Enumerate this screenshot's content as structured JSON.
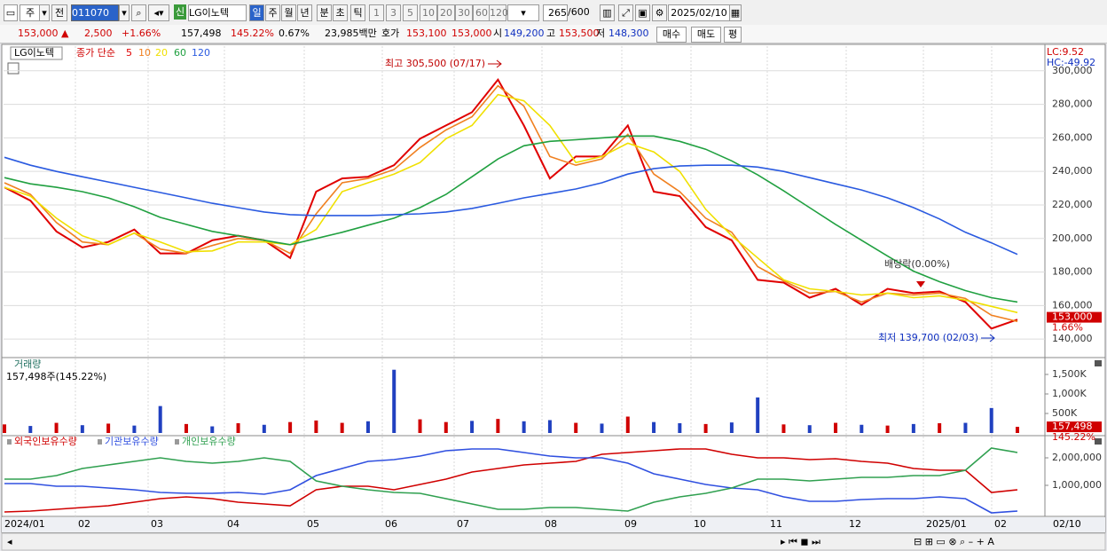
{
  "toolbar": {
    "period": "주",
    "prev": "전",
    "code": "011070",
    "badge": "신",
    "name": "LG이노텍",
    "intervals": [
      "일",
      "주",
      "월",
      "년",
      "분",
      "초",
      "틱"
    ],
    "minutes": [
      "1",
      "3",
      "5",
      "10",
      "20",
      "30",
      "60",
      "120"
    ],
    "count": "265",
    "max": "/600",
    "date": "2025/02/10"
  },
  "quote": {
    "price": "153,000 ▲",
    "change": "2,500",
    "change_pct": "+1.66%",
    "volume": "157,498",
    "volume_ratio": "145.22%",
    "turnover": "0.67%",
    "amount": "23,985백만",
    "ask_label": "호가",
    "ask": "153,100",
    "bid": "153,000",
    "open_label": "시",
    "open": "149,200",
    "high_label": "고",
    "high": "153,500",
    "low_label": "저",
    "low": "148,300",
    "buy": "매수",
    "sell": "매도",
    "avg": "평"
  },
  "x_axis": {
    "labels": [
      "2024/01",
      "02",
      "03",
      "04",
      "05",
      "06",
      "07",
      "08",
      "09",
      "10",
      "11",
      "12",
      "2025/01",
      "02"
    ],
    "last": "02/10"
  },
  "chart_data": [
    {
      "type": "line",
      "title": "LG이노텍",
      "legend_label": "종가 단순",
      "lc": "LC:9.52",
      "hc": "HC:-49.92",
      "series": [
        {
          "name": "5",
          "color": "#e00000",
          "values": [
            230500,
            222600,
            204200,
            194700,
            197900,
            205300,
            191100,
            191100,
            198900,
            201600,
            198900,
            188400,
            227900,
            235800,
            236800,
            243700,
            259500,
            267400,
            275300,
            294700,
            267400,
            235800,
            248900,
            248900,
            267400,
            227900,
            225300,
            206800,
            198900,
            175300,
            173700,
            164700,
            170000,
            160500,
            170000,
            167400,
            168400,
            162100,
            146300,
            151600
          ]
        },
        {
          "name": "10",
          "color": "#f08020",
          "values": [
            233200,
            226300,
            209500,
            197900,
            196300,
            203200,
            193700,
            191100,
            195800,
            200000,
            198900,
            191100,
            214700,
            233200,
            235800,
            241100,
            254200,
            264700,
            272600,
            291100,
            279000,
            248900,
            243700,
            247400,
            262100,
            238400,
            227900,
            212100,
            203700,
            183200,
            174700,
            167400,
            168400,
            162100,
            167400,
            166300,
            167400,
            164200,
            154200,
            150500
          ]
        },
        {
          "name": "20",
          "color": "#f0e000",
          "values": [
            230500,
            225300,
            212100,
            201600,
            196300,
            203200,
            197900,
            192100,
            192600,
            197900,
            197900,
            196300,
            205300,
            227900,
            233200,
            238400,
            245300,
            259500,
            267400,
            285800,
            282100,
            267400,
            245300,
            248900,
            256800,
            251600,
            240000,
            217400,
            201600,
            188400,
            175300,
            170000,
            168400,
            166300,
            167400,
            164700,
            165800,
            163200,
            159500,
            155800
          ]
        },
        {
          "name": "60",
          "color": "#20a040",
          "values": [
            236300,
            232600,
            230500,
            227900,
            224200,
            218900,
            212600,
            208400,
            204200,
            201600,
            198900,
            196300,
            200000,
            203700,
            207900,
            212100,
            218400,
            226300,
            236800,
            247400,
            255300,
            257900,
            258900,
            260000,
            261100,
            261100,
            257900,
            253200,
            246300,
            237900,
            228400,
            218400,
            208400,
            198900,
            189500,
            180500,
            174200,
            168900,
            164700,
            162100
          ]
        },
        {
          "name": "120",
          "color": "#2a5ae0",
          "values": [
            248400,
            243700,
            240000,
            236800,
            233700,
            230500,
            227400,
            224200,
            221000,
            218400,
            215800,
            214200,
            213700,
            213700,
            213700,
            214200,
            214700,
            215800,
            217900,
            221000,
            224200,
            226800,
            229500,
            233200,
            238400,
            241600,
            243200,
            243700,
            243700,
            242600,
            240000,
            236300,
            232600,
            228900,
            224200,
            218400,
            211600,
            203700,
            197400,
            190500
          ]
        }
      ],
      "ylim": [
        129500,
        314700
      ],
      "yticks": [
        {
          "value": 140000,
          "label": "140,000"
        },
        {
          "value": 160000,
          "label": "160,000"
        },
        {
          "value": 180000,
          "label": "180,000"
        },
        {
          "value": 200000,
          "label": "200,000"
        },
        {
          "value": 220000,
          "label": "220,000"
        },
        {
          "value": 240000,
          "label": "240,000"
        },
        {
          "value": 260000,
          "label": "260,000"
        },
        {
          "value": 280000,
          "label": "280,000"
        },
        {
          "value": 300000,
          "label": "300,000"
        }
      ],
      "grid": true,
      "annotations": [
        "최고 305,500 (07/17)",
        "최저 139,700 (02/03)",
        "배당락(0.00%)"
      ],
      "last_value": {
        "value": 153000,
        "label": "153,000"
      },
      "last_change": "1.66%"
    },
    {
      "type": "bar",
      "title": "거래량",
      "subtitle": "157,498주(145.22%)",
      "values": [
        220000,
        180000,
        260000,
        200000,
        240000,
        190000,
        690000,
        230000,
        170000,
        250000,
        210000,
        280000,
        320000,
        260000,
        300000,
        1620000,
        350000,
        280000,
        310000,
        360000,
        300000,
        330000,
        260000,
        240000,
        420000,
        280000,
        250000,
        230000,
        270000,
        910000,
        220000,
        200000,
        260000,
        210000,
        190000,
        230000,
        250000,
        260000,
        640000,
        157498
      ],
      "colors": [
        "#d00000",
        "#2040c0",
        "#d00000",
        "#2040c0",
        "#d00000",
        "#2040c0",
        "#2040c0",
        "#d00000",
        "#2040c0",
        "#d00000",
        "#2040c0",
        "#d00000",
        "#d00000",
        "#d00000",
        "#2040c0",
        "#2040c0",
        "#d00000",
        "#d00000",
        "#2040c0",
        "#d00000",
        "#2040c0",
        "#2040c0",
        "#d00000",
        "#2040c0",
        "#d00000",
        "#2040c0",
        "#2040c0",
        "#d00000",
        "#2040c0",
        "#2040c0",
        "#d00000",
        "#2040c0",
        "#d00000",
        "#2040c0",
        "#d00000",
        "#2040c0",
        "#d00000",
        "#2040c0",
        "#2040c0",
        "#d00000"
      ],
      "ylim": [
        -45500,
        1909000
      ],
      "yticks": [
        {
          "value": 500000,
          "label": "500K"
        },
        {
          "value": 1000000,
          "label": "1,000K"
        },
        {
          "value": 1500000,
          "label": "1,500K"
        }
      ],
      "grid": false,
      "last_value": {
        "value": 157498,
        "label": "157,498"
      },
      "last_ratio": "145.22%"
    },
    {
      "type": "line",
      "series": [
        {
          "name": "외국인보유수량",
          "color": "#d00000",
          "values": [
            32000,
            64500,
            129000,
            193500,
            258000,
            387000,
            516000,
            580600,
            516000,
            387000,
            322600,
            258000,
            838700,
            967700,
            967700,
            838700,
            1032000,
            1225800,
            1483900,
            1612900,
            1741900,
            1806500,
            1871000,
            2129000,
            2193500,
            2258100,
            2322600,
            2322600,
            2129000,
            2000000,
            2000000,
            1935500,
            1967700,
            1871000,
            1806500,
            1612900,
            1548400,
            1548400,
            741900,
            838700
          ]
        },
        {
          "name": "기관보유수량",
          "color": "#3050e0",
          "values": [
            1064500,
            1064500,
            967700,
            967700,
            903200,
            838700,
            741900,
            709700,
            709700,
            741900,
            677400,
            838700,
            1354800,
            1612900,
            1871000,
            1935500,
            2064500,
            2258100,
            2322600,
            2322600,
            2193500,
            2064500,
            2000000,
            2000000,
            1806500,
            1419400,
            1225800,
            1032300,
            903200,
            838700,
            580600,
            419400,
            419400,
            483900,
            516100,
            516100,
            580600,
            516100,
            0,
            64500
          ]
        },
        {
          "name": "개인보유수량",
          "color": "#30a050",
          "values": [
            1225800,
            1225800,
            1354800,
            1612900,
            1741900,
            1871000,
            2000000,
            1871000,
            1806500,
            1871000,
            2000000,
            1871000,
            1161300,
            967700,
            838700,
            741900,
            709700,
            516100,
            322600,
            129000,
            129000,
            193500,
            193500,
            129000,
            64500,
            387100,
            580600,
            709700,
            903200,
            1225800,
            1225800,
            1161300,
            1225800,
            1290300,
            1290300,
            1354800,
            1354800,
            1548400,
            2354800,
            2193500
          ]
        }
      ],
      "ylim": [
        -129000,
        2774000
      ],
      "yticks": [
        {
          "value": 1000000,
          "label": "1,000,000"
        },
        {
          "value": 2000000,
          "label": "2,000,000"
        }
      ],
      "grid": false
    }
  ]
}
